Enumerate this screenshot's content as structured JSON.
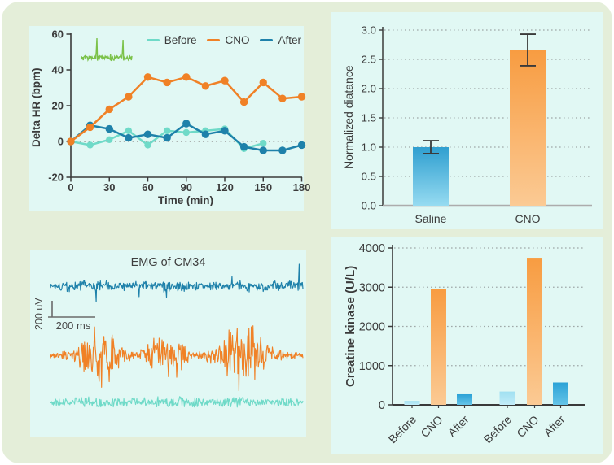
{
  "figure": {
    "bg": "#E4EED9",
    "panel_bg": "#E1F8F4",
    "outer_bg": "#FFFFFF"
  },
  "colors": {
    "before": "#6FDAC8",
    "cno": "#F08126",
    "after": "#1E81AA",
    "green_trace": "#7CC24A",
    "axis": "#3A3A3A",
    "axis_gray": "#ACACAC",
    "grid": "#9FA8A8",
    "zero_line": "#9A9A9A",
    "text": "#3B3B3B",
    "error_bar": "#3A3A3A",
    "scalebar": "#6A6A6A",
    "saline_bar_top": "#2F9FD0",
    "saline_bar_bottom": "#96DBF1",
    "orange_bar_top": "#F89C41",
    "orange_bar_bottom": "#FBCA94",
    "pale_blue_top": "#A0E0F1",
    "pale_blue_bottom": "#C2ECF8",
    "blue_bar_top": "#2BA2D6",
    "blue_bar_bottom": "#64C4E8"
  },
  "chart_data": [
    {
      "id": "delta-hr-line",
      "type": "line",
      "xlabel": "Time (min)",
      "ylabel": "Delta HR (bpm)",
      "xlim": [
        0,
        186
      ],
      "ylim": [
        -20,
        60
      ],
      "xticks": [
        0,
        30,
        60,
        90,
        120,
        150,
        180
      ],
      "yticks": [
        -20,
        0,
        20,
        40,
        60
      ],
      "zero_line": 0,
      "legend_position": "top-right",
      "draw_order": [
        0,
        2,
        1
      ],
      "series": [
        {
          "name": "Before",
          "color_key": "before",
          "x": [
            0,
            15,
            30,
            45,
            60,
            75,
            90,
            105,
            120,
            135,
            150
          ],
          "values": [
            0,
            -2,
            1,
            6,
            -2,
            6,
            5,
            6,
            7,
            -4,
            -1
          ]
        },
        {
          "name": "CNO",
          "color_key": "cno",
          "x": [
            0,
            15,
            30,
            45,
            60,
            75,
            90,
            105,
            120,
            135,
            150,
            165,
            180
          ],
          "values": [
            0,
            8,
            18,
            25,
            36,
            33,
            36,
            31,
            34,
            22,
            33,
            24,
            25
          ]
        },
        {
          "name": "After",
          "color_key": "after",
          "x": [
            0,
            15,
            30,
            45,
            60,
            75,
            90,
            105,
            120,
            135,
            150,
            165,
            180
          ],
          "values": [
            0,
            9,
            7,
            2,
            4,
            2,
            10,
            4,
            6,
            -3,
            -5,
            -5,
            -2
          ]
        }
      ],
      "inset": {
        "name": "ecg-inset-trace",
        "color_key": "green_trace",
        "seed": 5,
        "n": 85,
        "base_amp": 3,
        "clamp": 25,
        "bursts": [],
        "spikes": [
          {
            "t": 0.3,
            "amp": 24
          },
          {
            "t": 0.82,
            "amp": 22
          }
        ]
      }
    },
    {
      "id": "normalized-distance-bar",
      "type": "bar",
      "ylabel": "Normalized diatance",
      "categories": [
        "Saline",
        "CNO"
      ],
      "values": [
        1.0,
        2.66
      ],
      "errors": [
        0.11,
        0.27
      ],
      "ylim": [
        0,
        3.0
      ],
      "yticks": [
        0,
        0.5,
        1,
        1.5,
        2,
        2.5,
        3
      ],
      "grid": "dotted",
      "bar_style": [
        "saline",
        "orange"
      ]
    },
    {
      "id": "emg-traces",
      "type": "line",
      "title": "EMG of CM34",
      "scalebar_v": "200 uV",
      "scalebar_h": "200 ms",
      "traces": [
        {
          "name": "after-emg-trace",
          "color_key": "after",
          "seed": 7,
          "n": 470,
          "base_amp": 5,
          "clamp": 28,
          "bursts": [],
          "spikes": [
            {
              "t": 0.18,
              "amp": -19
            },
            {
              "t": 0.35,
              "amp": -13
            },
            {
              "t": 0.46,
              "amp": -14
            },
            {
              "t": 0.72,
              "amp": 12
            },
            {
              "t": 0.985,
              "amp": 27
            }
          ]
        },
        {
          "name": "cno-emg-trace",
          "color_key": "cno",
          "seed": 13,
          "n": 430,
          "base_amp": 3.5,
          "clamp": 48,
          "bursts": [
            {
              "c": 0.2,
              "w": 0.08,
              "amp": 40
            },
            {
              "c": 0.46,
              "w": 0.065,
              "amp": 38
            },
            {
              "c": 0.76,
              "w": 0.09,
              "amp": 46
            }
          ],
          "spikes": []
        },
        {
          "name": "before-emg-trace",
          "color_key": "before",
          "seed": 21,
          "n": 430,
          "base_amp": 4,
          "clamp": 12,
          "bursts": [
            {
              "c": 0.18,
              "w": 0.12,
              "amp": 3
            },
            {
              "c": 0.52,
              "w": 0.12,
              "amp": 2.5
            },
            {
              "c": 0.78,
              "w": 0.12,
              "amp": 3
            }
          ],
          "spikes": []
        }
      ]
    },
    {
      "id": "creatine-kinase-bar",
      "type": "bar",
      "ylabel": "Creatine kinase (U/L)",
      "categories": [
        "Before",
        "CNO",
        "After",
        "Before",
        "CNO",
        "After"
      ],
      "values": [
        100,
        2950,
        270,
        340,
        3750,
        570
      ],
      "ylim": [
        0,
        4000
      ],
      "yticks": [
        0,
        1000,
        2000,
        3000,
        4000
      ],
      "grid": "dotted",
      "rotated_labels": true,
      "bar_style": [
        "pale",
        "orange",
        "blue",
        "pale",
        "orange",
        "blue"
      ]
    }
  ]
}
